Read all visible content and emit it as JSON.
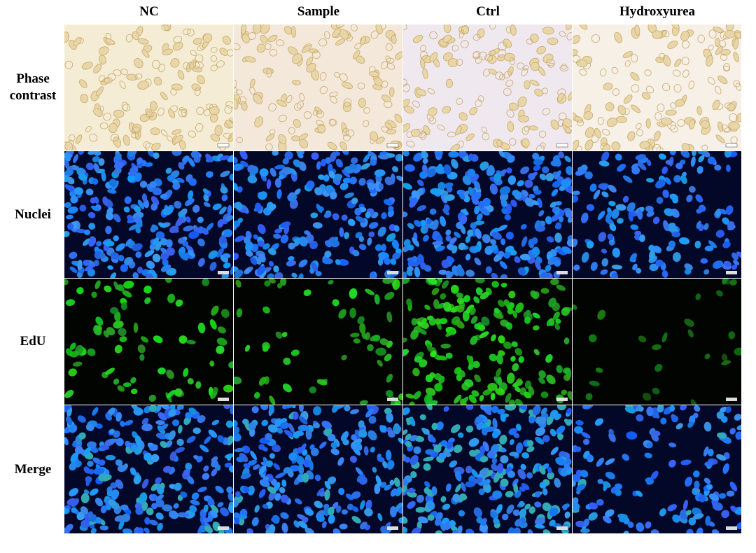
{
  "columns": [
    "NC",
    "Sample",
    "Ctrl",
    "Hydroxyurea"
  ],
  "rows": [
    "Phase contrast",
    "Nuclei",
    "EdU",
    "Merge"
  ]
}
